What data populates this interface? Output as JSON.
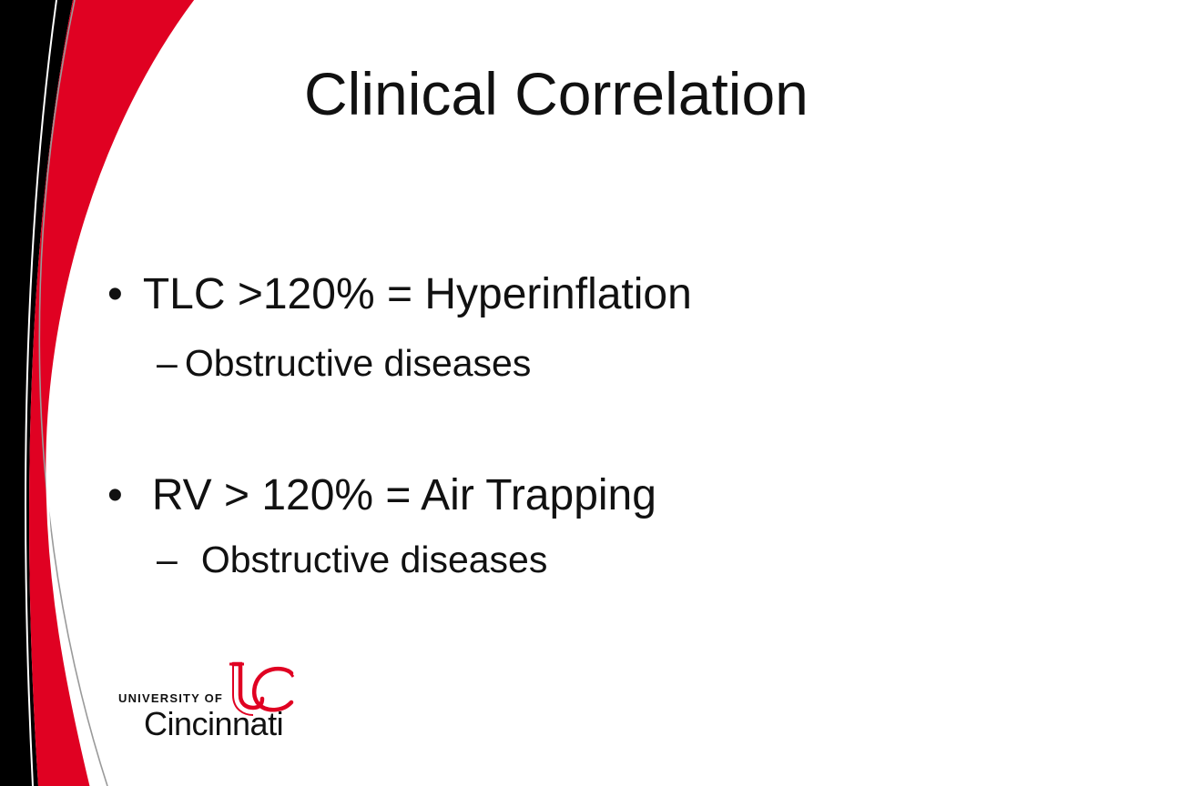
{
  "slide": {
    "title": "Clinical Correlation",
    "bullets": [
      {
        "marker": "•",
        "text": "TLC >120% = Hyperinflation",
        "sub": {
          "marker": "–",
          "text": "Obstructive diseases"
        }
      },
      {
        "marker": "•",
        "text": "RV > 120% = Air Trapping",
        "sub": {
          "marker": "–",
          "text": "Obstructive diseases"
        }
      }
    ]
  },
  "logo": {
    "line1": "UNIVERSITY OF",
    "line2": "Cincinnati",
    "monogram": "UC"
  },
  "colors": {
    "red": "#E00122",
    "black": "#000000",
    "text": "#111111"
  }
}
